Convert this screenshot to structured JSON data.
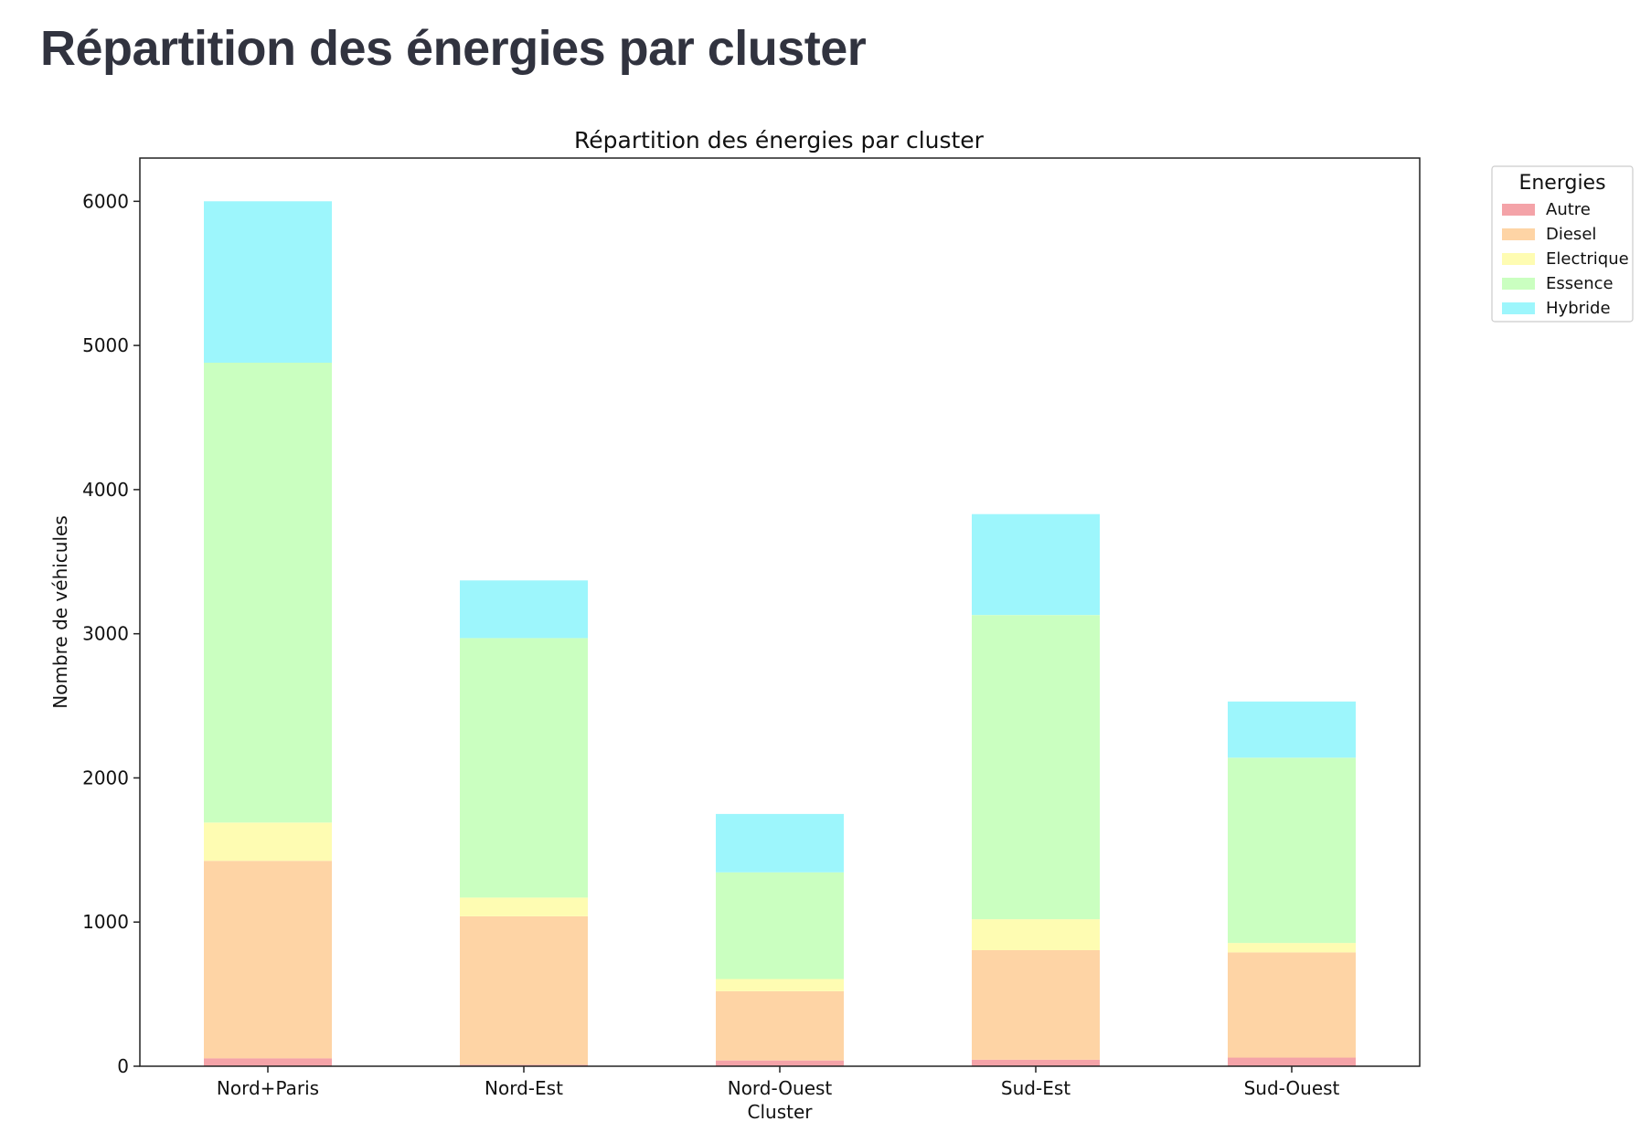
{
  "page": {
    "heading": "Répartition des énergies par cluster"
  },
  "chart_data": {
    "type": "bar",
    "stacked": true,
    "title": "Répartition des énergies par cluster",
    "xlabel": "Cluster",
    "ylabel": "Nombre de véhicules",
    "ylim": [
      0,
      6300
    ],
    "yticks": [
      0,
      1000,
      2000,
      3000,
      4000,
      5000,
      6000
    ],
    "grid": false,
    "legend_title": "Energies",
    "legend_position": "outside-top-right",
    "categories": [
      "Nord+Paris",
      "Nord-Est",
      "Nord-Ouest",
      "Sud-Est",
      "Sud-Ouest"
    ],
    "series": [
      {
        "name": "Autre",
        "color": "#f4a3a8",
        "values": [
          55,
          10,
          40,
          45,
          60
        ]
      },
      {
        "name": "Diesel",
        "color": "#fed4a5",
        "values": [
          1370,
          1030,
          480,
          760,
          730
        ]
      },
      {
        "name": "Electrique",
        "color": "#fefcb2",
        "values": [
          265,
          130,
          85,
          215,
          65
        ]
      },
      {
        "name": "Essence",
        "color": "#caffc0",
        "values": [
          3190,
          1800,
          740,
          2110,
          1285
        ]
      },
      {
        "name": "Hybride",
        "color": "#9df6fc",
        "values": [
          1120,
          400,
          405,
          700,
          390
        ]
      }
    ]
  }
}
